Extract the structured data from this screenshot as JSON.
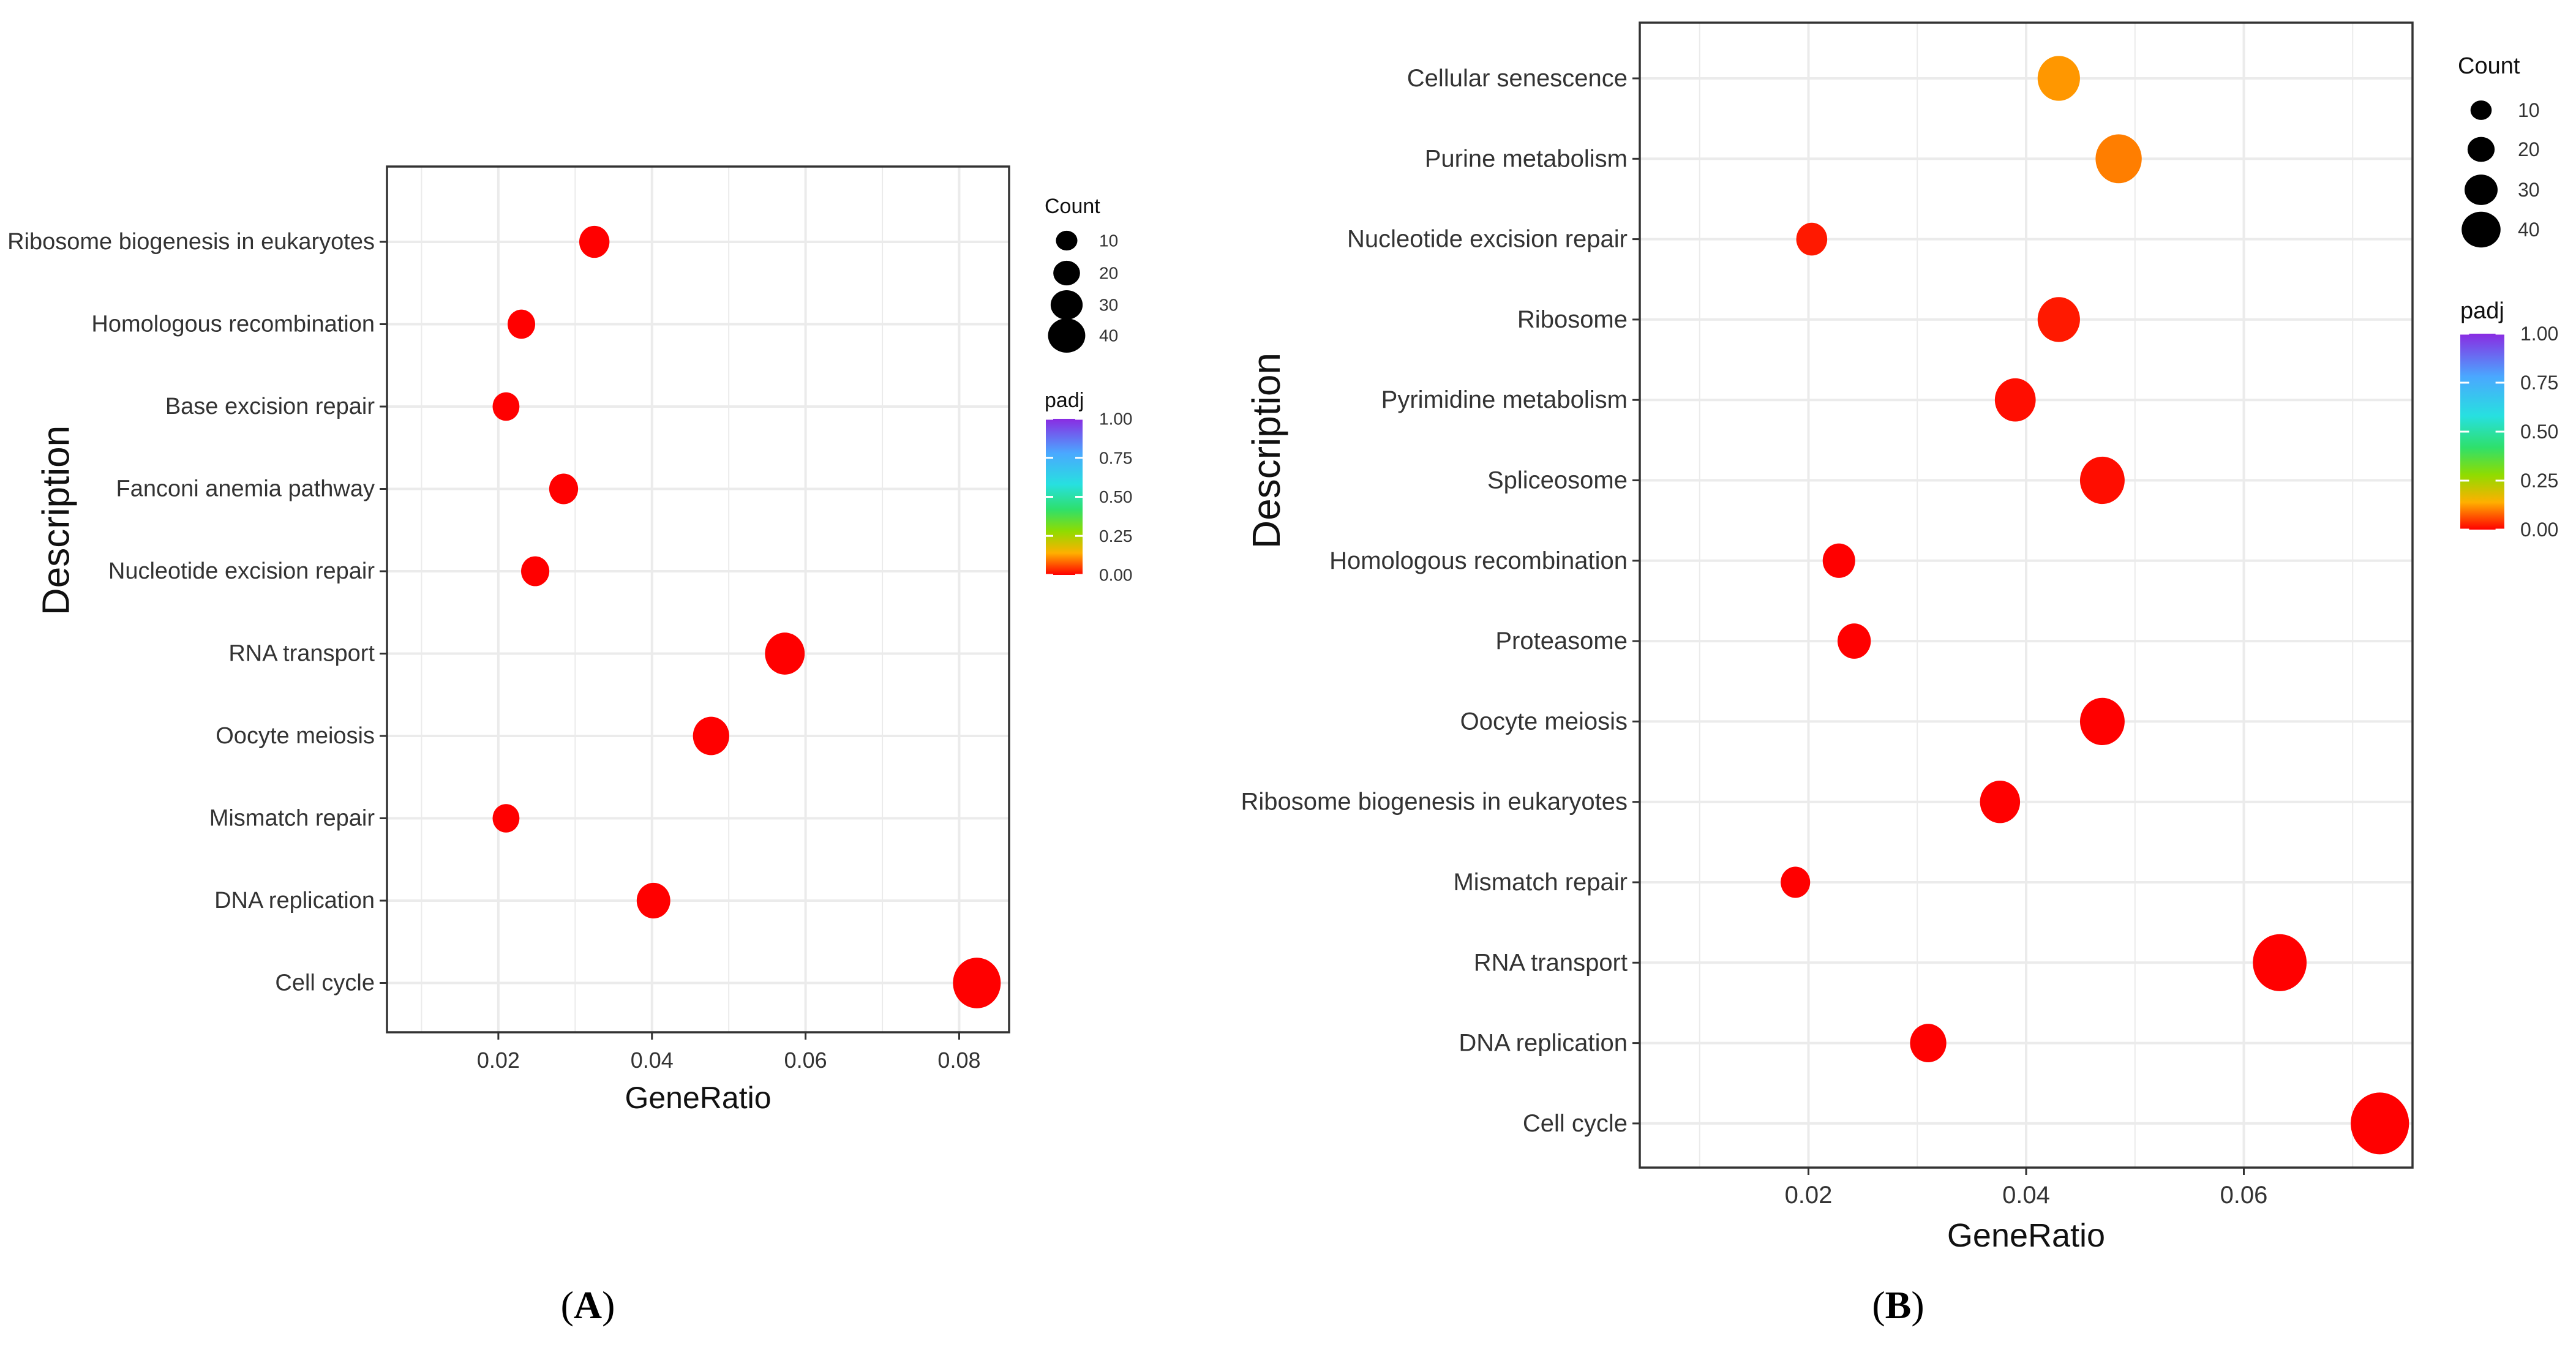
{
  "chart_data": [
    {
      "type": "scatter",
      "panel_label": "A",
      "xlabel": "GeneRatio",
      "ylabel": "Description",
      "xlim": [
        0.0055,
        0.0865
      ],
      "xticks": [
        0.02,
        0.04,
        0.06,
        0.08
      ],
      "xtick_labels": [
        "0.02",
        "0.04",
        "0.06",
        "0.08"
      ],
      "grid": true,
      "points": [
        {
          "label": "Ribosome biogenesis in eukaryotes",
          "x": 0.0325,
          "count": 14,
          "padj": 0.0
        },
        {
          "label": "Homologous recombination",
          "x": 0.023,
          "count": 10,
          "padj": 0.0
        },
        {
          "label": "Base excision repair",
          "x": 0.021,
          "count": 9,
          "padj": 0.0
        },
        {
          "label": "Fanconi anemia pathway",
          "x": 0.0285,
          "count": 12,
          "padj": 0.0
        },
        {
          "label": "Nucleotide excision repair",
          "x": 0.0248,
          "count": 11,
          "padj": 0.0
        },
        {
          "label": "RNA transport",
          "x": 0.0573,
          "count": 28,
          "padj": 0.0
        },
        {
          "label": "Oocyte meiosis",
          "x": 0.0477,
          "count": 23,
          "padj": 0.0
        },
        {
          "label": "Mismatch repair",
          "x": 0.021,
          "count": 9,
          "padj": 0.0
        },
        {
          "label": "DNA replication",
          "x": 0.0402,
          "count": 19,
          "padj": 0.0
        },
        {
          "label": "Cell cycle",
          "x": 0.0823,
          "count": 40,
          "padj": 0.0
        }
      ],
      "legend_count": {
        "title": "Count",
        "values": [
          10,
          20,
          30,
          40
        ],
        "labels": [
          "10",
          "20",
          "30",
          "40"
        ]
      },
      "legend_padj": {
        "title": "padj",
        "values": [
          1.0,
          0.75,
          0.5,
          0.25,
          0.0
        ],
        "labels": [
          "1.00",
          "0.75",
          "0.50",
          "0.25",
          "0.00"
        ]
      }
    },
    {
      "type": "scatter",
      "panel_label": "B",
      "xlabel": "GeneRatio",
      "ylabel": "Description",
      "xlim": [
        0.0045,
        0.0755
      ],
      "xticks": [
        0.02,
        0.04,
        0.06
      ],
      "xtick_labels": [
        "0.02",
        "0.04",
        "0.06"
      ],
      "grid": true,
      "points": [
        {
          "label": "Cellular senescence",
          "x": 0.043,
          "count": 30,
          "padj": 0.12
        },
        {
          "label": "Purine metabolism",
          "x": 0.0485,
          "count": 35,
          "padj": 0.1
        },
        {
          "label": "Nucleotide excision repair",
          "x": 0.0203,
          "count": 15,
          "padj": 0.02
        },
        {
          "label": "Ribosome",
          "x": 0.043,
          "count": 30,
          "padj": 0.02
        },
        {
          "label": "Pyrimidine metabolism",
          "x": 0.039,
          "count": 28,
          "padj": 0.01
        },
        {
          "label": "Spliceosome",
          "x": 0.047,
          "count": 33,
          "padj": 0.01
        },
        {
          "label": "Homologous recombination",
          "x": 0.0228,
          "count": 17,
          "padj": 0.0
        },
        {
          "label": "Proteasome",
          "x": 0.0242,
          "count": 18,
          "padj": 0.0
        },
        {
          "label": "Oocyte meiosis",
          "x": 0.047,
          "count": 33,
          "padj": 0.0
        },
        {
          "label": "Ribosome biogenesis in eukaryotes",
          "x": 0.0376,
          "count": 27,
          "padj": 0.0
        },
        {
          "label": "Mismatch repair",
          "x": 0.0188,
          "count": 13,
          "padj": 0.0
        },
        {
          "label": "RNA transport",
          "x": 0.0633,
          "count": 45,
          "padj": 0.0
        },
        {
          "label": "DNA replication",
          "x": 0.031,
          "count": 22,
          "padj": 0.0
        },
        {
          "label": "Cell cycle",
          "x": 0.0725,
          "count": 51,
          "padj": 0.0
        }
      ],
      "legend_count": {
        "title": "Count",
        "values": [
          10,
          20,
          30,
          40
        ],
        "labels": [
          "10",
          "20",
          "30",
          "40"
        ]
      },
      "legend_padj": {
        "title": "padj",
        "values": [
          1.0,
          0.75,
          0.5,
          0.25,
          0.0
        ],
        "labels": [
          "1.00",
          "0.75",
          "0.50",
          "0.25",
          "0.00"
        ]
      }
    }
  ],
  "colors": {
    "background": "#ffffff",
    "panel_border": "#333333",
    "grid": "#ebebeb",
    "text": "#333333",
    "axis_title": "#111111",
    "gradient": [
      "#8a2be2",
      "#4aa8ff",
      "#27e0e0",
      "#2ee06c",
      "#8fdc00",
      "#ffb000",
      "#ff0000"
    ]
  },
  "icons": {
    "legend_dot": "circle"
  }
}
